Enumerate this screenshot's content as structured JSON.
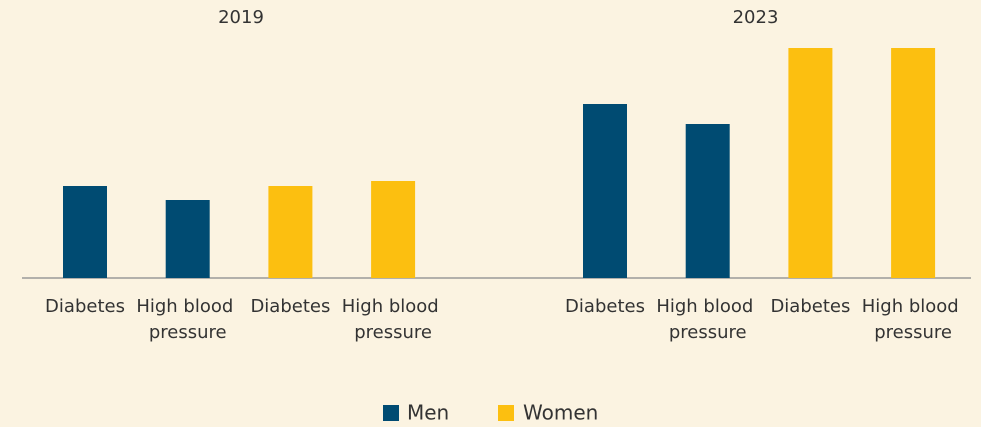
{
  "chart_data": [
    {
      "type": "bar",
      "title": "2019",
      "categories": [
        "Diabetes",
        "High blood pressure"
      ],
      "series": [
        {
          "name": "Men",
          "color": "#004b72",
          "values": [
            92,
            78
          ]
        },
        {
          "name": "Women",
          "color": "#fcbf10",
          "values": [
            92,
            97
          ]
        }
      ],
      "ylim": [
        0,
        240
      ]
    },
    {
      "type": "bar",
      "title": "2023",
      "categories": [
        "Diabetes",
        "High blood pressure"
      ],
      "series": [
        {
          "name": "Men",
          "color": "#004b72",
          "values": [
            174,
            154
          ]
        },
        {
          "name": "Women",
          "color": "#fcbf10",
          "values": [
            230,
            230
          ]
        }
      ],
      "ylim": [
        0,
        240
      ]
    }
  ]
}
